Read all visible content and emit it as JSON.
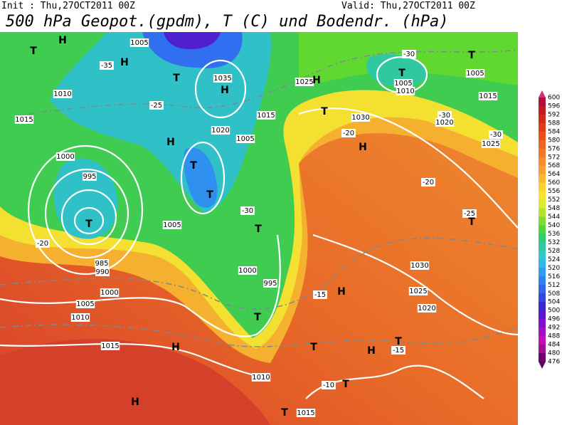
{
  "header": {
    "init": "Init : Thu,27OCT2011 00Z",
    "valid": "Valid: Thu,27OCT2011 00Z",
    "title": "500 hPa Geopot.(gpdm), T (C) und Bodendr. (hPa)"
  },
  "colorbar": {
    "labels": [
      600,
      596,
      592,
      588,
      584,
      580,
      576,
      572,
      568,
      564,
      560,
      556,
      552,
      548,
      544,
      540,
      536,
      532,
      528,
      524,
      520,
      516,
      512,
      508,
      504,
      500,
      496,
      492,
      488,
      484,
      480,
      476
    ],
    "colors": [
      "#b0103a",
      "#c41a22",
      "#d42a1c",
      "#e03c18",
      "#e85018",
      "#ee6420",
      "#f07828",
      "#f48c2c",
      "#f6a030",
      "#f8b830",
      "#f8d030",
      "#f4e630",
      "#d8ec30",
      "#b0e430",
      "#80dc30",
      "#50d440",
      "#30cc70",
      "#30c8a0",
      "#30c8c8",
      "#30b8e8",
      "#309cf0",
      "#3080f0",
      "#3064ec",
      "#3448e0",
      "#3828d0",
      "#5818d0",
      "#8010d0",
      "#a410c4",
      "#c010b4",
      "#a01090",
      "#700070"
    ],
    "top_color": "#d0307a",
    "bottom_color": "#600060"
  },
  "map_labels": [
    "T",
    "H",
    "H",
    "-35",
    "T",
    "H",
    "1010",
    "1015",
    "1000",
    "995",
    "T",
    "-20",
    "1005",
    "985",
    "990",
    "1000",
    "1005",
    "1010",
    "1015",
    "H",
    "T",
    "1000",
    "995",
    "T",
    "T",
    "T",
    "H",
    "1020",
    "1015",
    "1025",
    "H",
    "T",
    "1030",
    "-20",
    "H",
    "T",
    "1005",
    "1010",
    "-30",
    "T",
    "1005",
    "1015",
    "1020",
    "-30",
    "1025",
    "-30",
    "-20",
    "-25",
    "T",
    "1030",
    "1025",
    "1020",
    "H",
    "-15",
    "T",
    "H",
    "T",
    "1010",
    "T",
    "-10",
    "H",
    "T",
    "-15",
    "1015",
    "1035",
    "1005",
    "-25",
    "-30",
    "1005"
  ]
}
